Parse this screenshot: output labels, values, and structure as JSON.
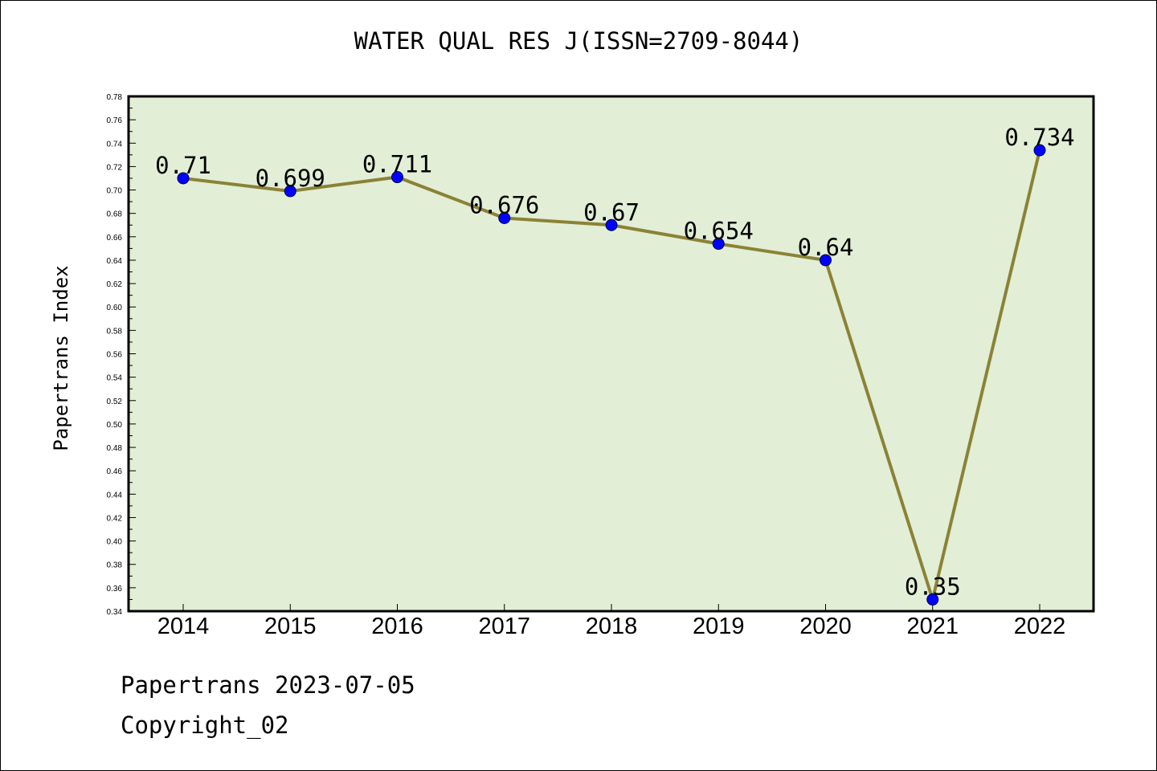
{
  "chart_data": {
    "type": "line",
    "title": "WATER QUAL RES J(ISSN=2709-8044)",
    "xlabel": "",
    "ylabel": "Papertrans Index",
    "categories": [
      "2014",
      "2015",
      "2016",
      "2017",
      "2018",
      "2019",
      "2020",
      "2021",
      "2022"
    ],
    "series": [
      {
        "values": [
          0.71,
          0.699,
          0.711,
          0.676,
          0.67,
          0.654,
          0.64,
          0.35,
          0.734
        ],
        "labels": [
          "0.71",
          "0.699",
          "0.711",
          "0.676",
          "0.67",
          "0.654",
          "0.64",
          "0.35",
          "0.734"
        ]
      }
    ],
    "ylim": [
      0.34,
      0.78
    ],
    "yticks": [
      "0.34",
      "0.36",
      "0.38",
      "0.40",
      "0.42",
      "0.44",
      "0.46",
      "0.48",
      "0.50",
      "0.52",
      "0.54",
      "0.56",
      "0.58",
      "0.60",
      "0.62",
      "0.64",
      "0.66",
      "0.68",
      "0.70",
      "0.72",
      "0.74",
      "0.76",
      "0.78"
    ],
    "grid": false,
    "colors": {
      "plot_background": "#e2efd6",
      "line": "#8b8236",
      "marker": "#0000ff",
      "frame": "#000000"
    }
  },
  "footer": {
    "date_line": "Papertrans 2023-07-05",
    "copyright": "Copyright_02"
  }
}
